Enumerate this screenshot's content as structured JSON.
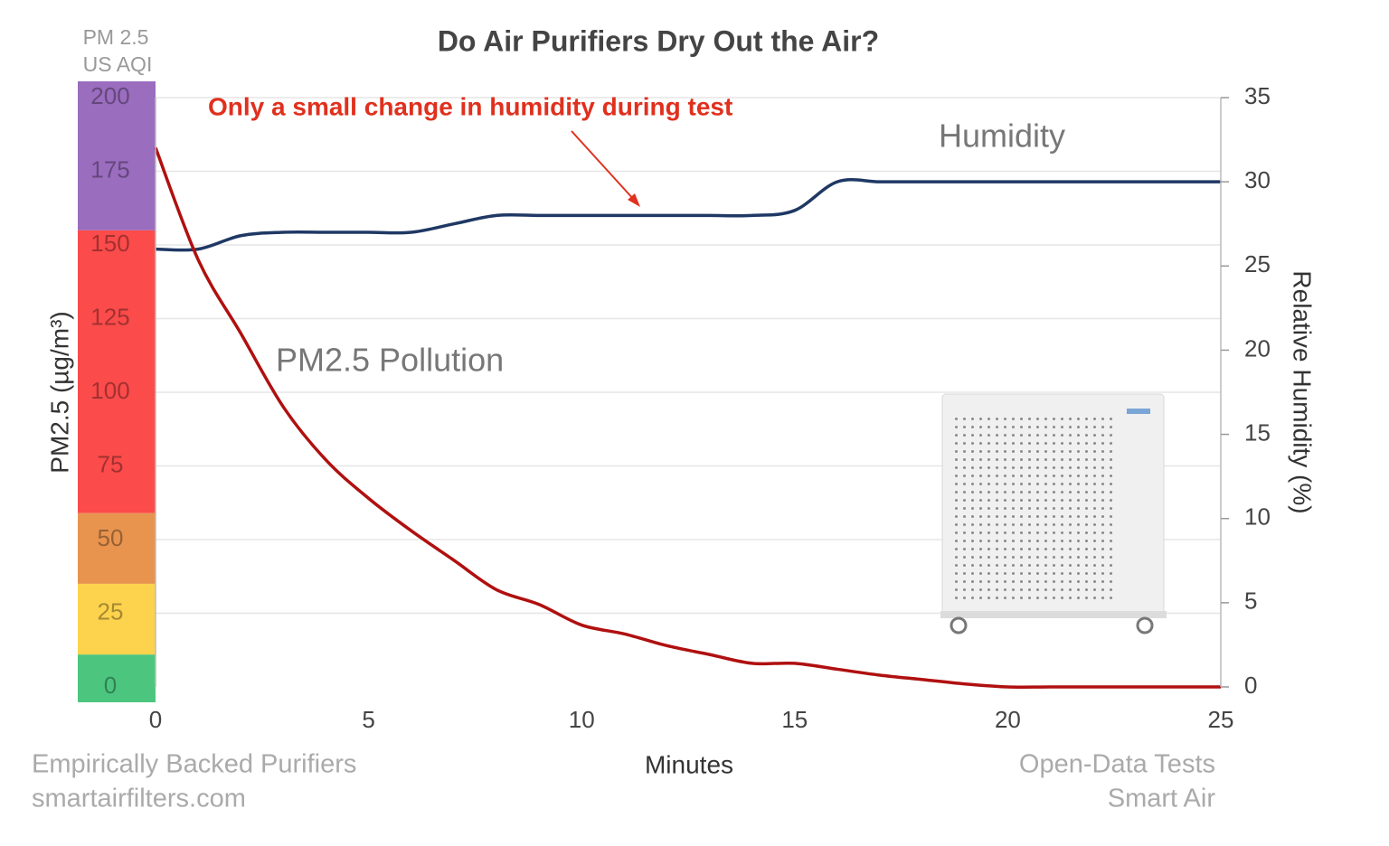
{
  "chart_data": {
    "type": "line",
    "title": "Do Air Purifiers Dry Out the Air?",
    "annotation": "Only a small change in humidity during test",
    "aqi_label": [
      "PM 2.5",
      "US AQI"
    ],
    "xlabel": "Minutes",
    "ylabel": "PM2.5 (µg/m³)",
    "y2label": "Relative Humidity (%)",
    "footer_left": [
      "Empirically Backed Purifiers",
      "smartairfilters.com"
    ],
    "footer_right": [
      "Open-Data Tests",
      "Smart Air"
    ],
    "x": [
      0,
      1,
      2,
      3,
      4,
      5,
      6,
      7,
      8,
      9,
      10,
      11,
      12,
      13,
      14,
      15,
      16,
      17,
      18,
      19,
      20,
      21,
      22,
      23,
      24,
      25
    ],
    "xlim": [
      0,
      25
    ],
    "xticks": [
      0,
      5,
      10,
      15,
      20,
      25
    ],
    "ylim": [
      0,
      200
    ],
    "yticks": [
      0,
      25,
      50,
      75,
      100,
      125,
      150,
      175,
      200
    ],
    "y2lim": [
      0,
      35
    ],
    "y2ticks": [
      0,
      5,
      10,
      15,
      20,
      25,
      30,
      35
    ],
    "grid": true,
    "aqi_bands": [
      {
        "to": 11,
        "color": "#4cc67f"
      },
      {
        "to": 35,
        "color": "#fdd34d"
      },
      {
        "to": 59,
        "color": "#e8944f"
      },
      {
        "to": 155,
        "color": "#fb4b4b"
      },
      {
        "to": 200,
        "color": "#9a6dbf"
      }
    ],
    "series": [
      {
        "name": "Humidity",
        "color": "#1f3864",
        "axis": "y2",
        "values": [
          26,
          26,
          26.8,
          27,
          27,
          27,
          27,
          27.5,
          28,
          28,
          28,
          28,
          28,
          28,
          28,
          28.3,
          30,
          30,
          30,
          30,
          30,
          30,
          30,
          30,
          30,
          30
        ]
      },
      {
        "name": "PM2.5 Pollution",
        "color": "#b01010",
        "values": [
          183,
          145,
          120,
          95,
          77,
          64,
          53,
          43,
          33,
          28,
          21,
          18,
          14,
          11,
          8,
          8,
          6,
          4,
          2.5,
          1,
          0,
          0,
          0,
          0,
          0,
          0
        ]
      }
    ]
  }
}
